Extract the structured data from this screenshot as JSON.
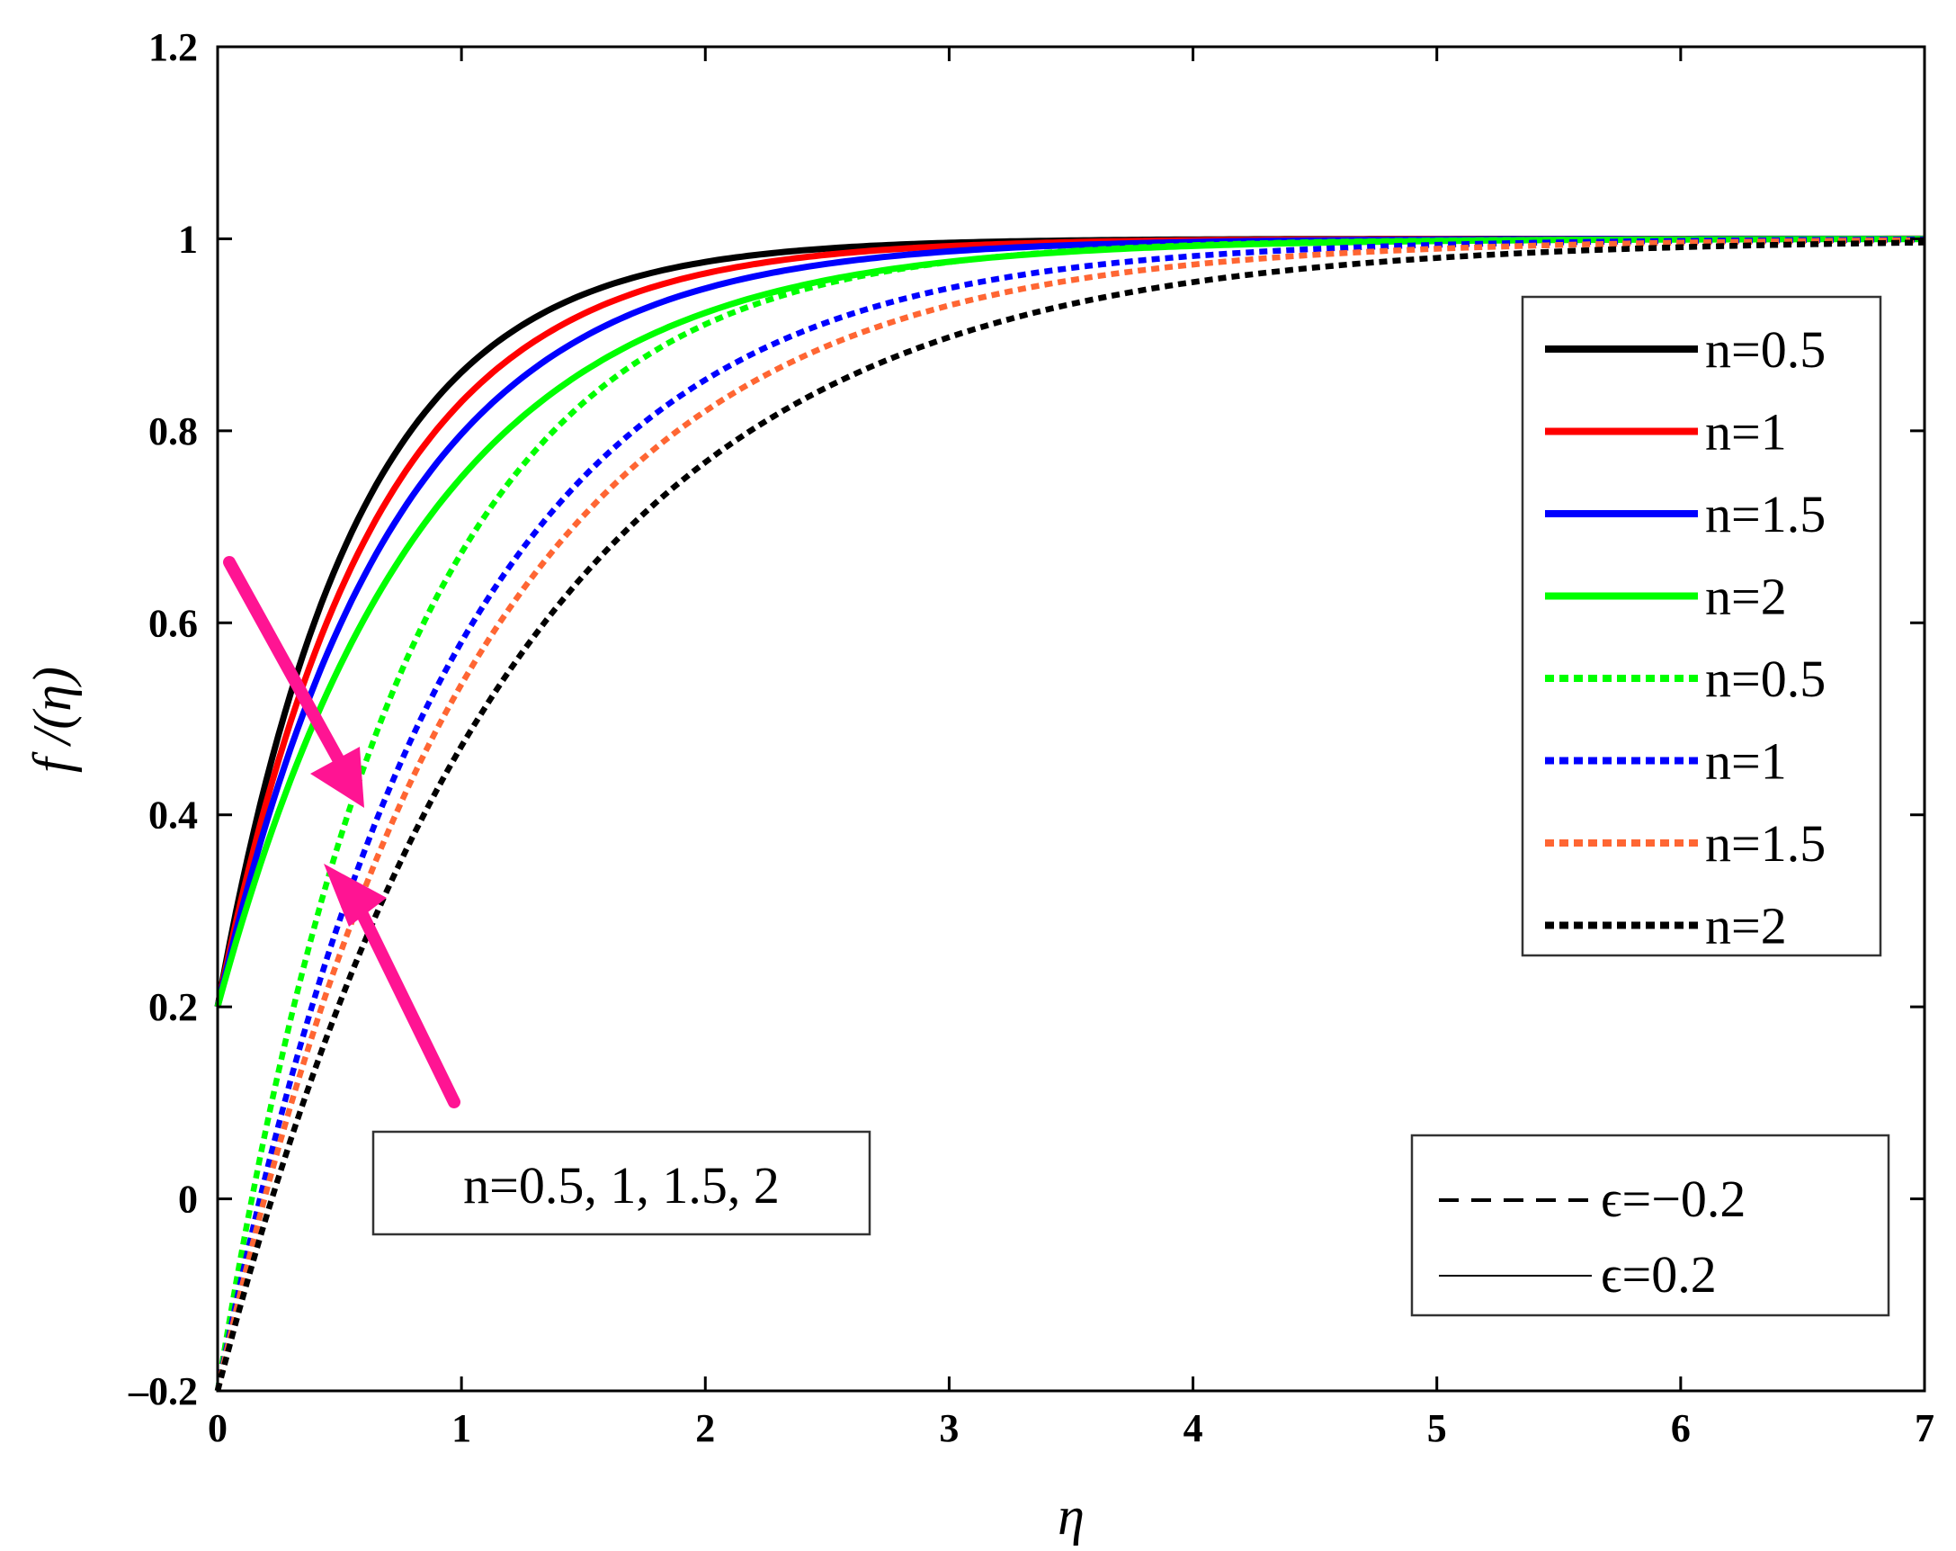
{
  "chart_data": {
    "type": "line",
    "xlabel": "η",
    "ylabel": "f /(η)",
    "xlim": [
      0,
      7
    ],
    "ylim": [
      -0.2,
      1.2
    ],
    "xticks": [
      "0",
      "1",
      "2",
      "3",
      "4",
      "5",
      "6",
      "7"
    ],
    "yticks": [
      "-0.2",
      "0",
      "0.2",
      "0.4",
      "0.6",
      "0.8",
      "1",
      "1.2"
    ],
    "grid": false,
    "legend": {
      "placement": "top-right",
      "entries": [
        {
          "label": "n=0.5",
          "color": "#000000",
          "style": "solid"
        },
        {
          "label": "n=1",
          "color": "#ff0000",
          "style": "solid"
        },
        {
          "label": "n=1.5",
          "color": "#0000ff",
          "style": "solid"
        },
        {
          "label": "n=2",
          "color": "#00ff00",
          "style": "solid"
        },
        {
          "label": "n=0.5",
          "color": "#00ff00",
          "style": "dotted"
        },
        {
          "label": "n=1",
          "color": "#0000ff",
          "style": "dotted"
        },
        {
          "label": "n=1.5",
          "color": "#ff6633",
          "style": "dotted"
        },
        {
          "label": "n=2",
          "color": "#000000",
          "style": "dotted"
        }
      ]
    },
    "style_legend": {
      "placement": "bottom-right",
      "entries": [
        {
          "label": "ϵ=−0.2",
          "style": "dashed"
        },
        {
          "label": "ϵ=0.2",
          "style": "solid"
        }
      ]
    },
    "annotation": {
      "text": "n=0.5, 1, 1.5, 2"
    },
    "series": [
      {
        "color": "#000000",
        "style": "solid",
        "y0": 0.2,
        "k": 1.75
      },
      {
        "color": "#ff0000",
        "style": "solid",
        "y0": 0.2,
        "k": 1.55
      },
      {
        "color": "#0000ff",
        "style": "solid",
        "y0": 0.2,
        "k": 1.37
      },
      {
        "color": "#00ff00",
        "style": "solid",
        "y0": 0.2,
        "k": 1.17
      },
      {
        "color": "#00ff00",
        "style": "dotted",
        "y0": -0.2,
        "k": 1.3
      },
      {
        "color": "#0000ff",
        "style": "dotted",
        "y0": -0.2,
        "k": 1.05
      },
      {
        "color": "#ff6633",
        "style": "dotted",
        "y0": -0.2,
        "k": 0.95
      },
      {
        "color": "#000000",
        "style": "dotted",
        "y0": -0.2,
        "k": 0.82
      }
    ]
  }
}
